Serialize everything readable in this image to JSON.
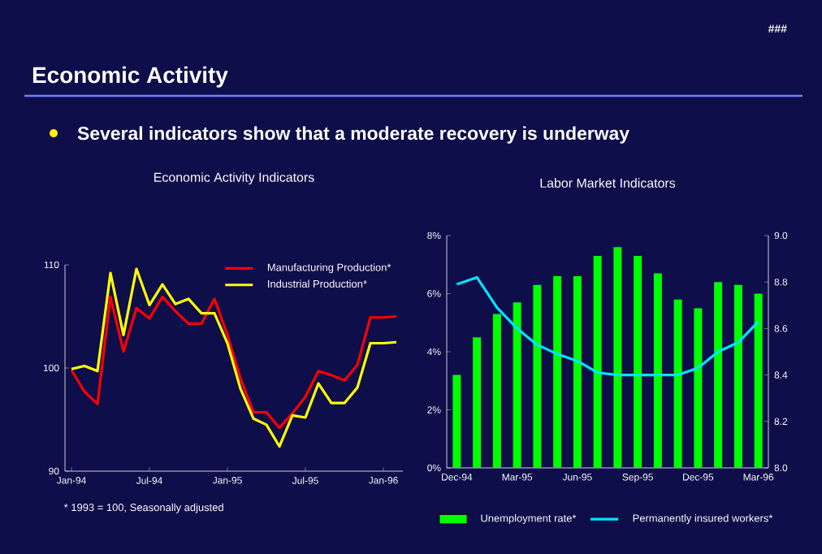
{
  "chart_data": [
    {
      "type": "other",
      "title": "Economic Activity",
      "annotations": [
        "Several indicators show that a moderate recovery is underway",
        "###"
      ]
    },
    {
      "type": "line",
      "title": "Economic Activity Indicators",
      "categories": [
        "Jan-94",
        null,
        null,
        null,
        null,
        null,
        "Jul-94",
        null,
        null,
        null,
        null,
        null,
        "Jan-95",
        null,
        null,
        null,
        null,
        null,
        "Jul-95",
        null,
        null,
        null,
        null,
        null,
        "Jan-96",
        null
      ],
      "series": [
        {
          "name": "Manufacturing Production*",
          "color": "#ff0000",
          "values": [
            99.8,
            97.7,
            96.5,
            106.9,
            101.6,
            105.8,
            104.8,
            106.9,
            105.5,
            104.3,
            104.3,
            106.7,
            103.2,
            99.0,
            95.7,
            95.7,
            94.2,
            95.6,
            97.2,
            99.7,
            99.3,
            98.8,
            100.3,
            104.9,
            104.9,
            105.0
          ]
        },
        {
          "name": "Industrial Production*",
          "color": "#ffff00",
          "values": [
            99.9,
            100.2,
            99.7,
            109.2,
            103.2,
            109.6,
            106.1,
            108.1,
            106.2,
            106.7,
            105.3,
            105.3,
            102.4,
            98.0,
            95.1,
            94.5,
            92.4,
            95.4,
            95.2,
            98.5,
            96.6,
            96.6,
            98.1,
            102.4,
            102.4,
            102.5
          ]
        }
      ],
      "ylim": [
        90,
        110
      ],
      "yticks": [
        90,
        100,
        110
      ],
      "legend": "top right",
      "annotations": [
        "* 1993 = 100, Seasonally adjusted"
      ]
    },
    {
      "type": "bar",
      "title": "Labor Market Indicators",
      "categories": [
        "Dec-94",
        null,
        null,
        "Mar-95",
        null,
        null,
        "Jun-95",
        null,
        null,
        "Sep-95",
        null,
        null,
        "Dec-95",
        null,
        null,
        "Mar-96"
      ],
      "series": [
        {
          "name": "Unemployment rate*",
          "color": "#00ff00",
          "values": [
            3.2,
            4.5,
            5.3,
            5.7,
            6.3,
            6.6,
            6.6,
            7.3,
            7.6,
            7.3,
            6.7,
            5.8,
            5.5,
            6.4,
            6.3,
            6.0
          ]
        },
        {
          "name": "Permanently insured workers*",
          "type": "line",
          "axis": "y2",
          "color": "#00e5ff",
          "values": [
            8.79,
            8.82,
            8.69,
            8.6,
            8.53,
            8.49,
            8.46,
            8.41,
            8.4,
            8.4,
            8.4,
            8.4,
            8.43,
            8.5,
            8.54,
            8.63
          ]
        }
      ],
      "ylim": [
        0,
        8
      ],
      "yticks": [
        {
          "value": 0,
          "label": "0%"
        },
        {
          "value": 2,
          "label": "2%"
        },
        {
          "value": 4,
          "label": "4%"
        },
        {
          "value": 6,
          "label": "6%"
        },
        {
          "value": 8,
          "label": "8%"
        }
      ],
      "y2lim": [
        8,
        9
      ],
      "y2ticks": [
        {
          "value": 8,
          "label": "8.0"
        },
        {
          "value": 8.2,
          "label": "8.2"
        },
        {
          "value": 8.4,
          "label": "8.4"
        },
        {
          "value": 8.6,
          "label": "8.6"
        },
        {
          "value": 8.8,
          "label": "8.8"
        },
        {
          "value": 9,
          "label": "9.0"
        }
      ],
      "legend": "bottom"
    }
  ]
}
